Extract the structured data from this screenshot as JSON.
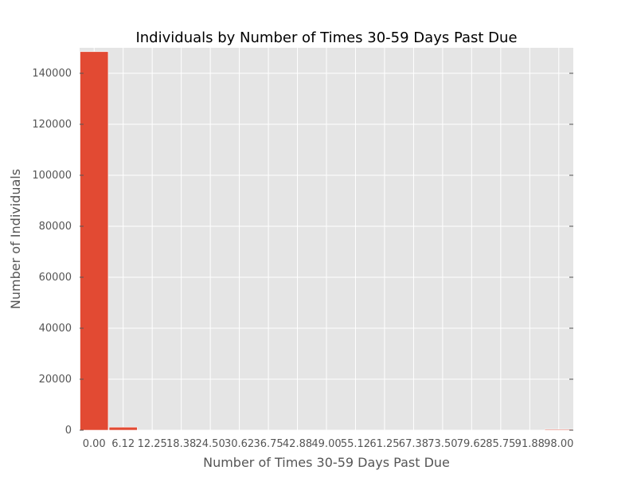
{
  "chart_data": {
    "type": "bar",
    "title": "Individuals by Number of Times 30-59 Days Past Due",
    "xlabel": "Number of Times 30-59 Days Past Due",
    "ylabel": "Number of Individuals",
    "categories": [
      "0.00",
      "6.12",
      "12.25",
      "18.38",
      "24.50",
      "30.62",
      "36.75",
      "42.88",
      "49.00",
      "55.12",
      "61.25",
      "67.38",
      "73.50",
      "79.62",
      "85.75",
      "91.88",
      "98.00"
    ],
    "values": [
      148500,
      1200,
      0,
      0,
      0,
      0,
      0,
      0,
      0,
      0,
      0,
      0,
      0,
      0,
      0,
      0,
      300
    ],
    "ylim": [
      0,
      150000
    ],
    "yticks": [
      0,
      20000,
      40000,
      60000,
      80000,
      100000,
      120000,
      140000
    ],
    "ytick_labels": [
      "0",
      "20000",
      "40000",
      "60000",
      "80000",
      "100000",
      "120000",
      "140000"
    ],
    "grid": true,
    "colors": {
      "bar": "#E24A33",
      "plot_background": "#E5E5E5",
      "grid": "#FFFFFF",
      "tick_text": "#555555",
      "label_text": "#555555",
      "title_text": "#000000"
    }
  }
}
